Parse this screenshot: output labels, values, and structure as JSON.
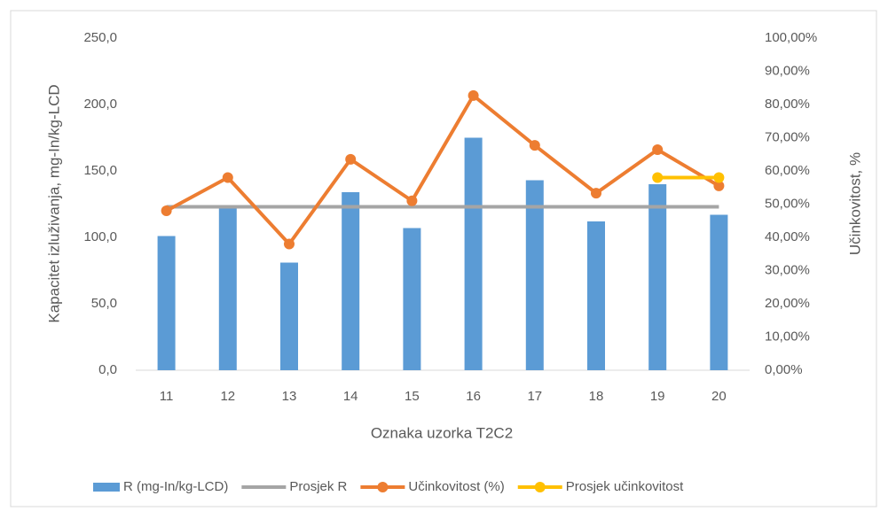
{
  "chart_data": {
    "type": "bar",
    "x_label": "Oznaka uzorka T2C2",
    "y_label": "Kapacitet izluživanja, mg-In/kg-LCD",
    "y2_label": "Učinkovitost, %",
    "categories": [
      "11",
      "12",
      "13",
      "14",
      "15",
      "16",
      "17",
      "18",
      "19",
      "20"
    ],
    "series": [
      {
        "name": "R (mg-In/kg-LCD)",
        "type": "bar",
        "color": "#5b9bd5",
        "values": [
          101,
          124,
          81,
          134,
          107,
          175,
          143,
          112,
          140,
          117
        ]
      },
      {
        "name": "Prosjek R",
        "type": "line",
        "markers": false,
        "color": "#a5a5a5",
        "values": [
          123,
          123,
          123,
          123,
          123,
          123,
          123,
          123,
          123,
          123
        ]
      },
      {
        "name": "Učinkovitost (%)",
        "type": "line",
        "markers": true,
        "axis": "y2",
        "color": "#ed7d31",
        "values": [
          48,
          58,
          38,
          63.5,
          51,
          82.7,
          67.7,
          53.3,
          66.4,
          55.5
        ]
      },
      {
        "name": "Prosjek učinkovitost",
        "type": "line",
        "markers": true,
        "axis": "y2",
        "color": "#ffc000",
        "values": [
          null,
          null,
          null,
          null,
          null,
          null,
          null,
          null,
          58,
          58
        ]
      }
    ],
    "ylim": [
      0,
      250
    ],
    "yticks": [
      {
        "value": 0,
        "label": "0,0"
      },
      {
        "value": 50,
        "label": "50,0"
      },
      {
        "value": 100,
        "label": "100,0"
      },
      {
        "value": 150,
        "label": "150,0"
      },
      {
        "value": 200,
        "label": "200,0"
      },
      {
        "value": 250,
        "label": "250,0"
      }
    ],
    "y2lim": [
      0,
      100
    ],
    "y2ticks": [
      {
        "value": 0,
        "label": "0,00%"
      },
      {
        "value": 10,
        "label": "10,00%"
      },
      {
        "value": 20,
        "label": "20,00%"
      },
      {
        "value": 30,
        "label": "30,00%"
      },
      {
        "value": 40,
        "label": "40,00%"
      },
      {
        "value": 50,
        "label": "50,00%"
      },
      {
        "value": 60,
        "label": "60,00%"
      },
      {
        "value": 70,
        "label": "70,00%"
      },
      {
        "value": 80,
        "label": "80,00%"
      },
      {
        "value": 90,
        "label": "90,00%"
      },
      {
        "value": 100,
        "label": "100,00%"
      }
    ],
    "grid": false,
    "legend": "bottom"
  }
}
